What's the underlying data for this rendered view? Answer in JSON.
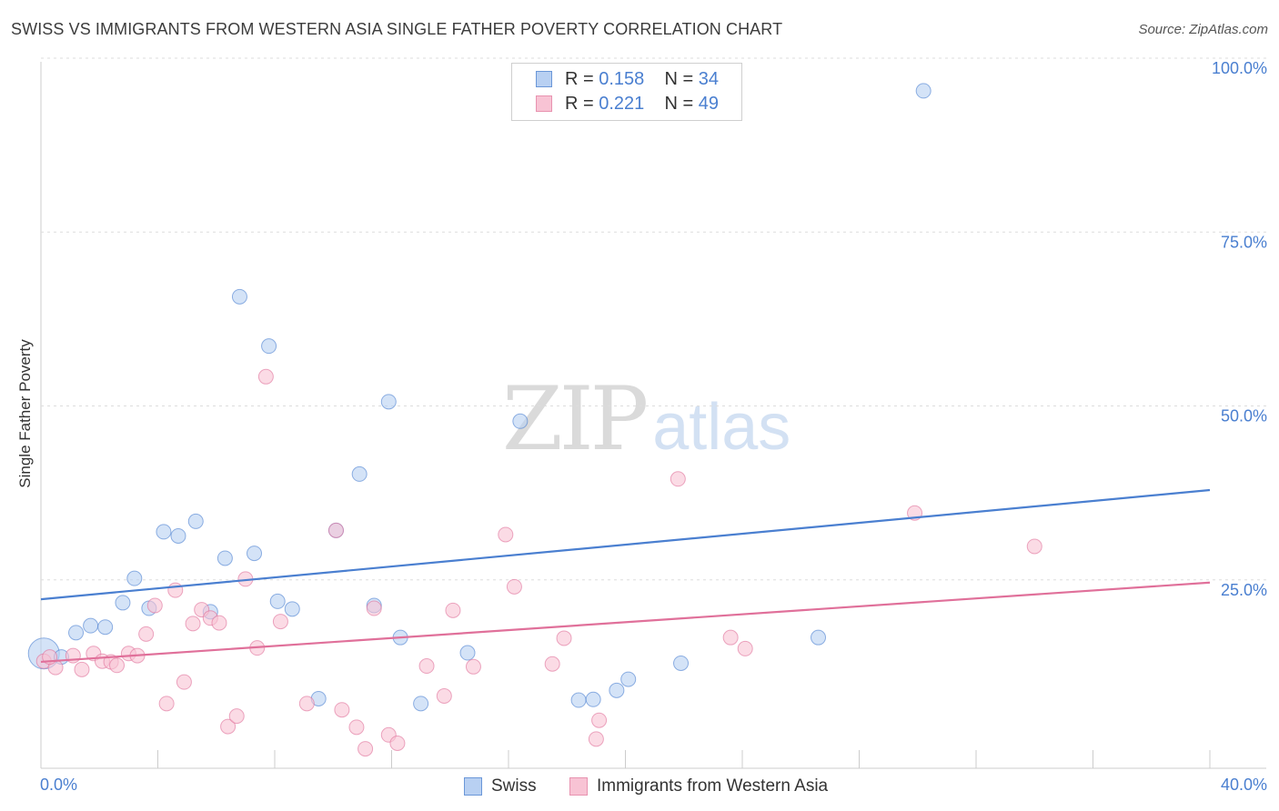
{
  "title": "SWISS VS IMMIGRANTS FROM WESTERN ASIA SINGLE FATHER POVERTY CORRELATION CHART",
  "source": "Source: ZipAtlas.com",
  "watermark": {
    "part1": "ZIP",
    "part2": "atlas"
  },
  "legend_top": {
    "rows": [
      {
        "r_label": "R = ",
        "r_value": "0.158",
        "n_label": "N = ",
        "n_value": "34"
      },
      {
        "r_label": "R = ",
        "r_value": "0.221",
        "n_label": "N = ",
        "n_value": "49"
      }
    ]
  },
  "legend_bottom": {
    "swiss": "Swiss",
    "immigrants": "Immigrants from Western Asia"
  },
  "chart_data": {
    "type": "scatter",
    "title": "SWISS VS IMMIGRANTS FROM WESTERN ASIA SINGLE FATHER POVERTY CORRELATION CHART",
    "xlabel": "",
    "ylabel": "Single Father Poverty",
    "xlim": [
      0,
      40
    ],
    "ylim": [
      0,
      100
    ],
    "x_tick_labels": [
      "0.0%",
      "40.0%"
    ],
    "y_tick_labels": [
      "25.0%",
      "50.0%",
      "75.0%",
      "100.0%"
    ],
    "y_ticks": [
      25,
      50,
      75,
      100
    ],
    "grid": "horizontal dashed",
    "legend_position": "top-center and bottom",
    "series": [
      {
        "name": "Swiss",
        "color": "#4a7fd0",
        "fill": "#b8d0f2",
        "r": 0.158,
        "n": 34,
        "trend": [
          [
            0,
            24.3
          ],
          [
            40,
            40.0
          ]
        ],
        "points": [
          [
            0.1,
            16.5
          ],
          [
            0.7,
            16.0
          ],
          [
            1.2,
            19.5
          ],
          [
            1.7,
            20.5
          ],
          [
            2.2,
            20.3
          ],
          [
            2.8,
            23.8
          ],
          [
            3.2,
            27.3
          ],
          [
            3.7,
            23.0
          ],
          [
            4.2,
            34.0
          ],
          [
            4.7,
            33.4
          ],
          [
            5.3,
            35.5
          ],
          [
            5.8,
            22.5
          ],
          [
            6.3,
            30.2
          ],
          [
            6.8,
            67.8
          ],
          [
            7.3,
            30.9
          ],
          [
            7.8,
            60.7
          ],
          [
            8.1,
            24.0
          ],
          [
            8.6,
            22.9
          ],
          [
            9.5,
            10.0
          ],
          [
            10.1,
            34.2
          ],
          [
            10.9,
            42.3
          ],
          [
            11.4,
            23.4
          ],
          [
            11.9,
            52.7
          ],
          [
            12.3,
            18.8
          ],
          [
            13.0,
            9.3
          ],
          [
            14.6,
            16.6
          ],
          [
            16.4,
            49.9
          ],
          [
            18.4,
            9.8
          ],
          [
            18.9,
            9.9
          ],
          [
            19.7,
            11.2
          ],
          [
            20.1,
            12.8
          ],
          [
            21.9,
            15.1
          ],
          [
            26.6,
            18.8
          ],
          [
            30.2,
            97.4
          ]
        ]
      },
      {
        "name": "Immigrants from Western Asia",
        "color": "#e0709a",
        "fill": "#f8c3d4",
        "r": 0.221,
        "n": 49,
        "trend": [
          [
            0,
            15.3
          ],
          [
            40,
            26.7
          ]
        ],
        "points": [
          [
            0.1,
            15.4
          ],
          [
            0.5,
            14.5
          ],
          [
            1.1,
            16.2
          ],
          [
            1.4,
            14.2
          ],
          [
            1.8,
            16.5
          ],
          [
            2.1,
            15.4
          ],
          [
            2.4,
            15.3
          ],
          [
            2.6,
            14.8
          ],
          [
            3.0,
            16.5
          ],
          [
            3.3,
            16.2
          ],
          [
            3.6,
            19.3
          ],
          [
            3.9,
            23.4
          ],
          [
            4.3,
            9.3
          ],
          [
            4.6,
            25.6
          ],
          [
            4.9,
            12.4
          ],
          [
            5.2,
            20.8
          ],
          [
            5.5,
            22.8
          ],
          [
            5.8,
            21.6
          ],
          [
            6.1,
            20.9
          ],
          [
            6.4,
            6.0
          ],
          [
            6.7,
            7.5
          ],
          [
            7.0,
            27.2
          ],
          [
            7.4,
            17.3
          ],
          [
            7.7,
            56.3
          ],
          [
            8.2,
            21.1
          ],
          [
            9.1,
            9.3
          ],
          [
            10.1,
            34.2
          ],
          [
            10.3,
            8.4
          ],
          [
            10.8,
            5.9
          ],
          [
            11.1,
            2.8
          ],
          [
            11.4,
            23.0
          ],
          [
            11.9,
            4.8
          ],
          [
            12.2,
            3.6
          ],
          [
            13.2,
            14.7
          ],
          [
            13.8,
            10.4
          ],
          [
            14.1,
            22.7
          ],
          [
            14.8,
            14.6
          ],
          [
            15.9,
            33.6
          ],
          [
            16.2,
            26.1
          ],
          [
            17.5,
            15.0
          ],
          [
            17.9,
            18.7
          ],
          [
            19.0,
            4.2
          ],
          [
            19.1,
            6.9
          ],
          [
            21.8,
            41.6
          ],
          [
            23.6,
            18.8
          ],
          [
            24.1,
            17.2
          ],
          [
            29.9,
            36.7
          ],
          [
            34.0,
            31.9
          ],
          [
            0.3,
            16.0
          ]
        ]
      }
    ]
  }
}
